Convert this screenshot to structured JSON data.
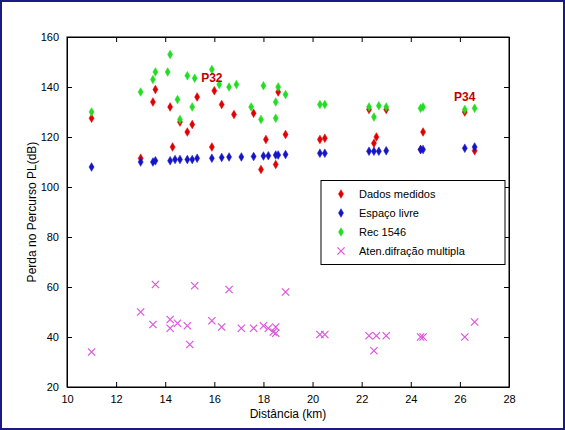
{
  "chart_data": {
    "type": "scatter",
    "x_label": "Distância (km)",
    "y_label": "Perda no Percurso PL(dB)",
    "xlim": [
      10,
      28
    ],
    "xticks": [
      10,
      12,
      14,
      16,
      18,
      20,
      22,
      24,
      26,
      28
    ],
    "ylim": [
      20,
      160
    ],
    "yticks": [
      20,
      40,
      60,
      80,
      100,
      120,
      140,
      160
    ],
    "legend": "right",
    "grid": false,
    "annotations": [
      {
        "text": "P32",
        "x": 15.9,
        "y": 142,
        "color": "#c00000"
      },
      {
        "text": "P34",
        "x": 26.2,
        "y": 134.5,
        "color": "#c00000"
      }
    ],
    "series": [
      {
        "name": "Dados medidos",
        "color": "#e00000",
        "marker": "diamond",
        "x": [
          11,
          13,
          13.5,
          13.6,
          14.2,
          14.3,
          14.6,
          14.9,
          15.1,
          15.3,
          15.9,
          16.0,
          16.3,
          16.8,
          17.6,
          17.9,
          18.1,
          18.5,
          18.6,
          18.9,
          20.3,
          20.5,
          22.3,
          22.5,
          22.6,
          23.0,
          24.4,
          24.5,
          26.2,
          26.6
        ],
        "values": [
          127.5,
          111.5,
          134,
          139,
          132,
          116,
          126,
          122,
          125,
          136,
          116,
          138.5,
          133,
          129,
          129.5,
          107,
          119,
          109,
          138,
          121,
          119,
          119.5,
          131,
          117.5,
          120,
          131,
          115,
          122,
          130,
          114.5
        ]
      },
      {
        "name": "Espaço livre",
        "color": "#1515c8",
        "marker": "diamond",
        "x": [
          11,
          13,
          13.5,
          13.6,
          14.2,
          14.4,
          14.6,
          14.9,
          15.1,
          15.3,
          15.9,
          16.3,
          16.6,
          17.1,
          17.6,
          18.0,
          18.2,
          18.5,
          18.6,
          18.9,
          20.3,
          20.5,
          22.3,
          22.5,
          22.7,
          23.0,
          24.4,
          24.5,
          26.2,
          26.6
        ],
        "values": [
          108,
          110,
          110,
          110.5,
          110.5,
          111,
          111,
          111,
          111,
          111.5,
          111.5,
          111.8,
          112,
          112,
          112.2,
          112.4,
          112.5,
          112.8,
          112.8,
          113,
          113.5,
          113.5,
          114.3,
          114.3,
          114.3,
          114.5,
          115,
          115,
          115.5,
          116
        ]
      },
      {
        "name": "Rec 1546",
        "color": "#22dd22",
        "marker": "diamond",
        "x": [
          11,
          13,
          13.5,
          13.6,
          14.1,
          14.2,
          14.5,
          14.6,
          14.9,
          15.1,
          15.2,
          15.9,
          16.2,
          16.6,
          16.9,
          17.5,
          17.9,
          18.0,
          18.5,
          18.5,
          18.6,
          18.9,
          20.3,
          20.5,
          22.3,
          22.5,
          22.7,
          23.0,
          24.4,
          24.5,
          26.2,
          26.6
        ],
        "values": [
          130,
          138,
          143,
          146,
          146,
          153,
          135,
          127,
          144.5,
          132,
          143.5,
          147,
          141,
          140,
          141,
          132,
          127,
          140.5,
          134,
          127.5,
          140,
          137,
          133,
          133,
          132,
          128,
          132.5,
          132,
          131.5,
          132,
          131,
          131.5
        ]
      },
      {
        "name": "Aten.difração multipla",
        "color": "#dd55dd",
        "marker": "x",
        "x": [
          11,
          13,
          13.5,
          13.6,
          14.2,
          14.2,
          14.5,
          14.9,
          15.0,
          15.2,
          15.9,
          16.3,
          16.6,
          17.1,
          17.6,
          18.0,
          18.2,
          18.5,
          18.4,
          18.5,
          18.9,
          20.3,
          20.5,
          22.3,
          22.5,
          22.6,
          23.0,
          24.4,
          24.5,
          26.2,
          26.6
        ],
        "values": [
          34,
          50,
          45,
          61,
          47,
          43.5,
          45.5,
          44.5,
          37,
          60.5,
          46.5,
          44,
          59,
          43.5,
          43.5,
          44.5,
          43.5,
          44,
          42,
          41.5,
          58,
          41,
          41,
          40.5,
          34.5,
          40.5,
          40.5,
          40,
          40,
          40,
          46
        ]
      }
    ]
  }
}
